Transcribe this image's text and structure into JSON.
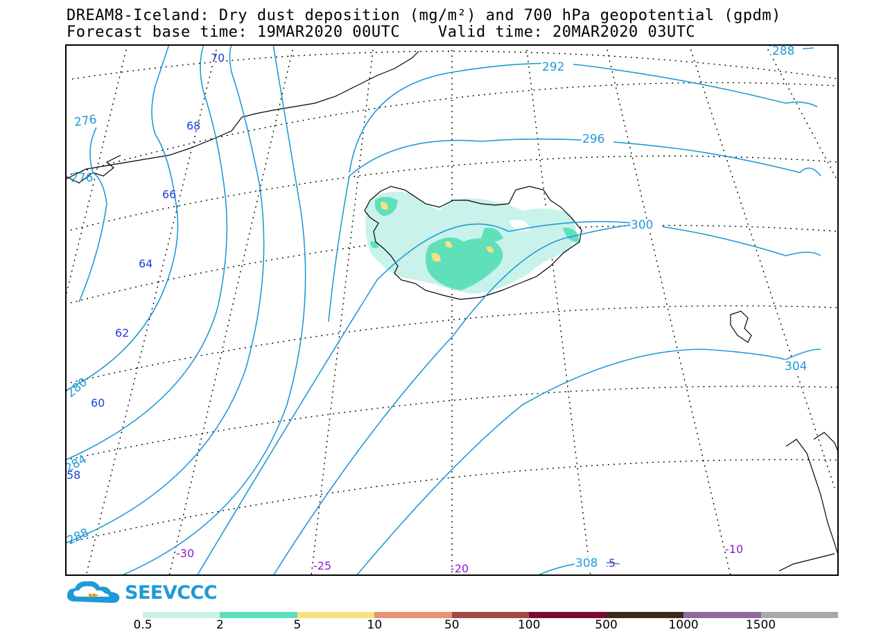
{
  "title": {
    "line1": "DREAM8-Iceland: Dry dust deposition (mg/m²) and 700 hPa geopotential (gpdm)",
    "line2": "Forecast base time: 19MAR2020 00UTC    Valid time: 20MAR2020 03UTC"
  },
  "logo": {
    "text": "SEEVCCC",
    "icon": "cloud-icon"
  },
  "lat_labels": [
    "70",
    "68",
    "66",
    "64",
    "62",
    "60",
    "58"
  ],
  "lon_labels": [
    "-30",
    "-25",
    "-20",
    "-15",
    "-10"
  ],
  "contour_labels": [
    "288",
    "292",
    "296",
    "300",
    "304",
    "308",
    "276",
    "276",
    "280",
    "284",
    "288"
  ],
  "legend": {
    "labels": [
      "0.5",
      "2",
      "5",
      "10",
      "50",
      "100",
      "500",
      "1000",
      "1500"
    ],
    "colors": [
      "#c8f2ea",
      "#5fe0bb",
      "#f7e27e",
      "#e89274",
      "#a34a42",
      "#7a0b2c",
      "#3e2a1c",
      "#8f6a9c",
      "#a9a9a9"
    ]
  },
  "colors": {
    "contour": "#1f9ad6",
    "lat_label": "#1f3fd8",
    "lon_label": "#8a1cc9",
    "coast": "#000000"
  }
}
